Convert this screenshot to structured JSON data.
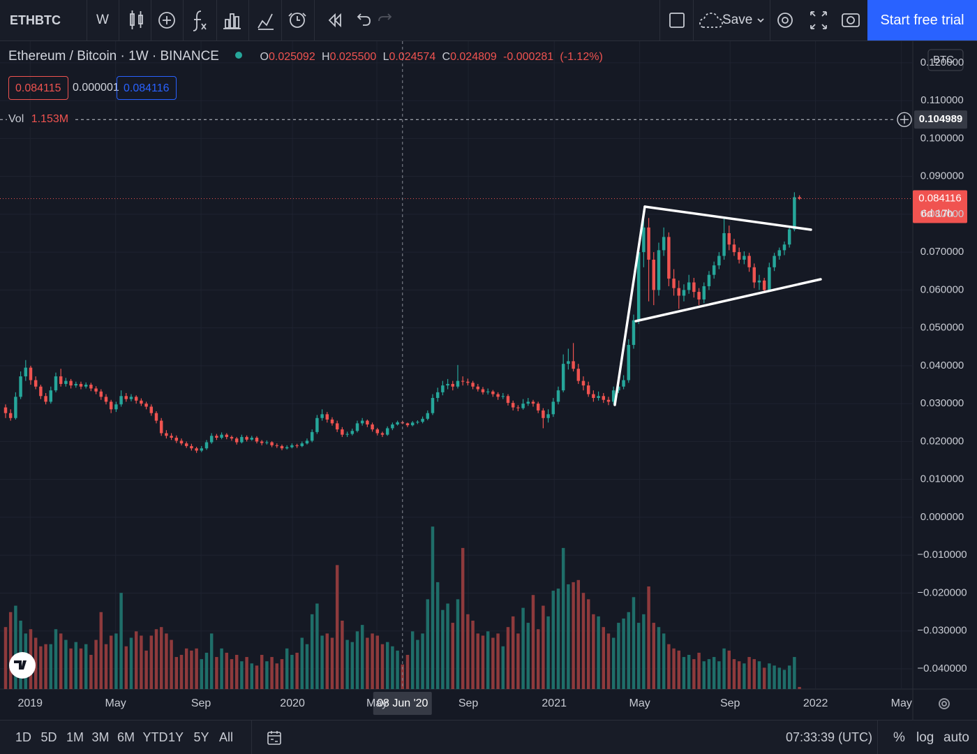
{
  "toolbar": {
    "symbol": "ETHBTC",
    "interval": "W",
    "save": "Save",
    "trial": "Start free trial"
  },
  "legend": {
    "title": "Ethereum / Bitcoin · 1W · BINANCE",
    "ohlc": [
      {
        "key": "O",
        "value": 0.025092
      },
      {
        "key": "H",
        "value": 0.0255,
        "label": "0.025500"
      },
      {
        "key": "L",
        "value": 0.024574
      },
      {
        "key": "C",
        "value": 0.024809
      }
    ],
    "change": -0.000281,
    "change_percent": {
      "value": -1.12,
      "label": "(-1.12%)"
    },
    "bid": 0.084115,
    "spread": 1e-06,
    "ask": 0.084116,
    "volume_name": "Vol",
    "volume_value": {
      "value": 1.153,
      "label": "1.153M"
    }
  },
  "chart_data": {
    "type": "candlestick",
    "grid": true,
    "up_color": "#26a69a",
    "down_color": "#ef5350",
    "volume_up_color": "#1f6e69",
    "volume_down_color": "#8e3a3c",
    "currency": "BTC",
    "xlim": [
      -1.11,
      180.56
    ],
    "xticks": [
      {
        "value": 4.9,
        "label": "2019"
      },
      {
        "value": 21.9,
        "label": "May"
      },
      {
        "value": 38.9,
        "label": "Sep"
      },
      {
        "value": 57.1,
        "label": "2020"
      },
      {
        "value": 73.9,
        "label": "May"
      },
      {
        "value": 92.1,
        "label": "Sep"
      },
      {
        "value": 109.2,
        "label": "2021"
      },
      {
        "value": 126.2,
        "label": "May"
      },
      {
        "value": 144.2,
        "label": "Sep"
      },
      {
        "value": 161.2,
        "label": "2022"
      },
      {
        "value": 178.3,
        "label": "May"
      }
    ],
    "ylim": [
      -0.04535,
      0.12568
    ],
    "yticks": [
      {
        "value": 0.12,
        "label": "0.120000"
      },
      {
        "value": 0.11,
        "label": "0.110000"
      },
      {
        "value": 0.1,
        "label": "0.100000"
      },
      {
        "value": 0.09,
        "label": "0.090000"
      },
      {
        "value": 0.08,
        "label": "0.080000"
      },
      {
        "value": 0.07,
        "label": "0.070000"
      },
      {
        "value": 0.06,
        "label": "0.060000"
      },
      {
        "value": 0.05,
        "label": "0.050000"
      },
      {
        "value": 0.04,
        "label": "0.040000"
      },
      {
        "value": 0.03,
        "label": "0.030000"
      },
      {
        "value": 0.02,
        "label": "0.020000"
      },
      {
        "value": 0.01,
        "label": "0.010000"
      },
      {
        "value": 0,
        "label": "0.000000"
      },
      {
        "value": -0.01,
        "label": "−0.010000"
      },
      {
        "value": -0.02,
        "label": "−0.020000"
      },
      {
        "value": -0.03,
        "label": "−0.030000"
      },
      {
        "value": -0.04,
        "label": "−0.040000"
      }
    ],
    "volume_ylim": [
      0,
      8
    ],
    "last_price": {
      "value": 0.084116,
      "countdown": "6d 17h"
    },
    "crosshair": {
      "x": 79,
      "x_label": "08 Jun '20",
      "y": 0.104989
    },
    "candles": [
      [
        0.029,
        0.0298,
        0.0262,
        0.0275
      ],
      [
        0.0275,
        0.0285,
        0.0255,
        0.0262
      ],
      [
        0.0262,
        0.033,
        0.0258,
        0.0318
      ],
      [
        0.0318,
        0.0385,
        0.0312,
        0.0372
      ],
      [
        0.0372,
        0.0415,
        0.036,
        0.0395
      ],
      [
        0.0395,
        0.04,
        0.035,
        0.0362
      ],
      [
        0.0362,
        0.0372,
        0.0338,
        0.0345
      ],
      [
        0.0345,
        0.035,
        0.0312,
        0.032
      ],
      [
        0.032,
        0.0328,
        0.0298,
        0.0305
      ],
      [
        0.0305,
        0.0345,
        0.03,
        0.0335
      ],
      [
        0.0335,
        0.0382,
        0.033,
        0.0372
      ],
      [
        0.0372,
        0.0392,
        0.0345,
        0.0352
      ],
      [
        0.0352,
        0.0368,
        0.0345,
        0.036
      ],
      [
        0.036,
        0.0365,
        0.034,
        0.0348
      ],
      [
        0.0348,
        0.0358,
        0.0342,
        0.0352
      ],
      [
        0.0352,
        0.0358,
        0.0338,
        0.0345
      ],
      [
        0.0345,
        0.0356,
        0.034,
        0.035
      ],
      [
        0.035,
        0.0355,
        0.0333,
        0.034
      ],
      [
        0.034,
        0.0346,
        0.0325,
        0.0332
      ],
      [
        0.0332,
        0.0338,
        0.031,
        0.0318
      ],
      [
        0.0318,
        0.0325,
        0.0298,
        0.0305
      ],
      [
        0.0305,
        0.031,
        0.0275,
        0.0285
      ],
      [
        0.0285,
        0.0305,
        0.0278,
        0.0298
      ],
      [
        0.0298,
        0.0335,
        0.0292,
        0.032
      ],
      [
        0.032,
        0.0328,
        0.0305,
        0.0312
      ],
      [
        0.0312,
        0.0325,
        0.0306,
        0.0318
      ],
      [
        0.0318,
        0.0322,
        0.03,
        0.0308
      ],
      [
        0.0308,
        0.0314,
        0.0294,
        0.03
      ],
      [
        0.03,
        0.0305,
        0.0285,
        0.0292
      ],
      [
        0.0292,
        0.0298,
        0.0268,
        0.0275
      ],
      [
        0.0275,
        0.028,
        0.0248,
        0.0255
      ],
      [
        0.0255,
        0.0262,
        0.0215,
        0.0222
      ],
      [
        0.0222,
        0.023,
        0.0208,
        0.0215
      ],
      [
        0.0215,
        0.0222,
        0.0204,
        0.021
      ],
      [
        0.021,
        0.0216,
        0.0196,
        0.0202
      ],
      [
        0.0202,
        0.0208,
        0.019,
        0.0195
      ],
      [
        0.0195,
        0.02,
        0.0183,
        0.0188
      ],
      [
        0.0188,
        0.0194,
        0.0176,
        0.0182
      ],
      [
        0.0182,
        0.0186,
        0.017,
        0.0176
      ],
      [
        0.0176,
        0.0188,
        0.0172,
        0.0182
      ],
      [
        0.0182,
        0.0204,
        0.0178,
        0.0198
      ],
      [
        0.0198,
        0.0222,
        0.0194,
        0.0215
      ],
      [
        0.0215,
        0.022,
        0.0204,
        0.021
      ],
      [
        0.021,
        0.0224,
        0.0206,
        0.0218
      ],
      [
        0.0218,
        0.0222,
        0.0206,
        0.0212
      ],
      [
        0.0212,
        0.0216,
        0.0202,
        0.0208
      ],
      [
        0.0208,
        0.0212,
        0.0192,
        0.0198
      ],
      [
        0.0198,
        0.0218,
        0.0195,
        0.0212
      ],
      [
        0.0212,
        0.0216,
        0.02,
        0.0205
      ],
      [
        0.0205,
        0.0215,
        0.0202,
        0.021
      ],
      [
        0.021,
        0.0214,
        0.0195,
        0.02
      ],
      [
        0.02,
        0.0204,
        0.019,
        0.0196
      ],
      [
        0.0196,
        0.0203,
        0.0192,
        0.0198
      ],
      [
        0.0198,
        0.0201,
        0.0185,
        0.019
      ],
      [
        0.019,
        0.0195,
        0.0183,
        0.0188
      ],
      [
        0.0188,
        0.0192,
        0.0177,
        0.0182
      ],
      [
        0.0182,
        0.019,
        0.0179,
        0.0185
      ],
      [
        0.0185,
        0.0195,
        0.0182,
        0.019
      ],
      [
        0.019,
        0.0194,
        0.0183,
        0.0188
      ],
      [
        0.0188,
        0.02,
        0.0185,
        0.0195
      ],
      [
        0.0195,
        0.0208,
        0.0192,
        0.0202
      ],
      [
        0.0202,
        0.0232,
        0.0198,
        0.0225
      ],
      [
        0.0225,
        0.027,
        0.022,
        0.0262
      ],
      [
        0.0262,
        0.0285,
        0.0255,
        0.0272
      ],
      [
        0.0272,
        0.0278,
        0.025,
        0.0258
      ],
      [
        0.0258,
        0.0264,
        0.0242,
        0.0248
      ],
      [
        0.0248,
        0.0255,
        0.0225,
        0.0232
      ],
      [
        0.0232,
        0.0238,
        0.0212,
        0.0218
      ],
      [
        0.0218,
        0.0226,
        0.0212,
        0.022
      ],
      [
        0.022,
        0.0234,
        0.0216,
        0.0228
      ],
      [
        0.0228,
        0.0255,
        0.0224,
        0.0248
      ],
      [
        0.0248,
        0.0262,
        0.0242,
        0.0255
      ],
      [
        0.0255,
        0.0258,
        0.0238,
        0.0245
      ],
      [
        0.0245,
        0.025,
        0.0226,
        0.0232
      ],
      [
        0.0232,
        0.0236,
        0.0216,
        0.0222
      ],
      [
        0.0222,
        0.0226,
        0.0212,
        0.0218
      ],
      [
        0.0218,
        0.024,
        0.0215,
        0.0235
      ],
      [
        0.0235,
        0.025,
        0.023,
        0.0245
      ],
      [
        0.0245,
        0.0255,
        0.0242,
        0.025092
      ],
      [
        0.025092,
        0.0255,
        0.024574,
        0.024809
      ],
      [
        0.024809,
        0.025,
        0.0238,
        0.0243
      ],
      [
        0.0243,
        0.0254,
        0.024,
        0.025
      ],
      [
        0.025,
        0.0256,
        0.0246,
        0.0252
      ],
      [
        0.0252,
        0.0266,
        0.0248,
        0.026
      ],
      [
        0.026,
        0.0282,
        0.0256,
        0.0275
      ],
      [
        0.0275,
        0.0325,
        0.027,
        0.0315
      ],
      [
        0.0315,
        0.0342,
        0.0305,
        0.033
      ],
      [
        0.033,
        0.036,
        0.0322,
        0.0348
      ],
      [
        0.0348,
        0.0365,
        0.0338,
        0.0352
      ],
      [
        0.0352,
        0.036,
        0.0335,
        0.0345
      ],
      [
        0.0345,
        0.0402,
        0.034,
        0.036
      ],
      [
        0.036,
        0.0372,
        0.0348,
        0.0358
      ],
      [
        0.0358,
        0.0366,
        0.0348,
        0.0355
      ],
      [
        0.0355,
        0.036,
        0.0338,
        0.0345
      ],
      [
        0.0345,
        0.0352,
        0.0332,
        0.0338
      ],
      [
        0.0338,
        0.0344,
        0.0324,
        0.033
      ],
      [
        0.033,
        0.034,
        0.0324,
        0.0332
      ],
      [
        0.0332,
        0.0336,
        0.0318,
        0.0325
      ],
      [
        0.0325,
        0.033,
        0.031,
        0.0318
      ],
      [
        0.0318,
        0.0328,
        0.0312,
        0.032
      ],
      [
        0.032,
        0.0325,
        0.0295,
        0.0302
      ],
      [
        0.0302,
        0.0308,
        0.0282,
        0.029
      ],
      [
        0.029,
        0.0296,
        0.028,
        0.0288
      ],
      [
        0.0288,
        0.0312,
        0.0284,
        0.03
      ],
      [
        0.03,
        0.0315,
        0.0294,
        0.0305
      ],
      [
        0.0305,
        0.031,
        0.0292,
        0.03
      ],
      [
        0.03,
        0.0305,
        0.0275,
        0.0282
      ],
      [
        0.0282,
        0.0288,
        0.0235,
        0.0262
      ],
      [
        0.0262,
        0.0285,
        0.025,
        0.0272
      ],
      [
        0.0272,
        0.0315,
        0.0265,
        0.0305
      ],
      [
        0.0305,
        0.0345,
        0.0298,
        0.0335
      ],
      [
        0.0335,
        0.043,
        0.033,
        0.0405
      ],
      [
        0.0405,
        0.0445,
        0.039,
        0.0412
      ],
      [
        0.0412,
        0.046,
        0.0385,
        0.0392
      ],
      [
        0.0392,
        0.0405,
        0.0352,
        0.036
      ],
      [
        0.036,
        0.0372,
        0.0335,
        0.0348
      ],
      [
        0.0348,
        0.0358,
        0.0318,
        0.0325
      ],
      [
        0.0325,
        0.0335,
        0.0305,
        0.0315
      ],
      [
        0.0315,
        0.0332,
        0.0308,
        0.032
      ],
      [
        0.032,
        0.0328,
        0.0302,
        0.031
      ],
      [
        0.031,
        0.0318,
        0.0296,
        0.0305
      ],
      [
        0.0305,
        0.0345,
        0.0298,
        0.0335
      ],
      [
        0.0335,
        0.0358,
        0.0328,
        0.0345
      ],
      [
        0.0345,
        0.0375,
        0.0338,
        0.0362
      ],
      [
        0.0362,
        0.047,
        0.0355,
        0.0455
      ],
      [
        0.0455,
        0.0535,
        0.0445,
        0.052
      ],
      [
        0.052,
        0.072,
        0.051,
        0.07
      ],
      [
        0.07,
        0.0805,
        0.066,
        0.0765
      ],
      [
        0.0765,
        0.079,
        0.057,
        0.068
      ],
      [
        0.068,
        0.07,
        0.056,
        0.06
      ],
      [
        0.06,
        0.0725,
        0.0585,
        0.0705
      ],
      [
        0.0705,
        0.0765,
        0.069,
        0.074
      ],
      [
        0.074,
        0.0752,
        0.061,
        0.063
      ],
      [
        0.063,
        0.0655,
        0.0585,
        0.0605
      ],
      [
        0.0605,
        0.0625,
        0.055,
        0.0585
      ],
      [
        0.0585,
        0.0615,
        0.057,
        0.06
      ],
      [
        0.06,
        0.064,
        0.059,
        0.062
      ],
      [
        0.062,
        0.0632,
        0.058,
        0.0595
      ],
      [
        0.0595,
        0.0605,
        0.056,
        0.0575
      ],
      [
        0.0575,
        0.062,
        0.0565,
        0.061
      ],
      [
        0.061,
        0.065,
        0.06,
        0.064
      ],
      [
        0.064,
        0.0675,
        0.063,
        0.0665
      ],
      [
        0.0665,
        0.07,
        0.0655,
        0.069
      ],
      [
        0.069,
        0.0792,
        0.068,
        0.075
      ],
      [
        0.075,
        0.077,
        0.0705,
        0.072
      ],
      [
        0.072,
        0.0735,
        0.069,
        0.07
      ],
      [
        0.07,
        0.0712,
        0.067,
        0.068
      ],
      [
        0.068,
        0.0702,
        0.0668,
        0.069
      ],
      [
        0.069,
        0.0698,
        0.0648,
        0.066
      ],
      [
        0.066,
        0.067,
        0.0605,
        0.062
      ],
      [
        0.062,
        0.064,
        0.06,
        0.0625
      ],
      [
        0.0625,
        0.0632,
        0.0592,
        0.06
      ],
      [
        0.06,
        0.0672,
        0.0596,
        0.066
      ],
      [
        0.066,
        0.0698,
        0.065,
        0.069
      ],
      [
        0.069,
        0.0712,
        0.068,
        0.0705
      ],
      [
        0.0705,
        0.0728,
        0.0692,
        0.072
      ],
      [
        0.072,
        0.077,
        0.0712,
        0.076
      ],
      [
        0.076,
        0.0858,
        0.0755,
        0.0845
      ],
      [
        0.0845,
        0.085,
        0.0838,
        0.084116
      ]
    ],
    "volume": [
      2.9,
      3.6,
      3.9,
      3.2,
      2.6,
      2.8,
      2.4,
      2.0,
      2.1,
      2.1,
      2.8,
      2.6,
      2.3,
      1.9,
      2.2,
      1.9,
      2.1,
      1.6,
      2.3,
      3.6,
      2.1,
      2.5,
      2.6,
      4.5,
      2.0,
      2.4,
      2.7,
      2.5,
      1.8,
      2.5,
      2.8,
      2.9,
      2.6,
      2.3,
      1.5,
      1.6,
      1.9,
      1.8,
      1.9,
      1.4,
      1.7,
      2.6,
      1.5,
      1.9,
      1.7,
      1.4,
      1.6,
      1.3,
      1.5,
      1.2,
      1.1,
      1.6,
      1.3,
      1.5,
      1.2,
      1.4,
      1.9,
      1.6,
      1.7,
      2.4,
      2.1,
      3.5,
      4.0,
      2.5,
      2.6,
      2.4,
      5.8,
      3.2,
      2.3,
      2.2,
      2.7,
      3.0,
      2.4,
      2.6,
      2.5,
      2.1,
      2.2,
      2.0,
      1.8,
      1.153,
      1.6,
      2.7,
      2.3,
      2.6,
      4.2,
      7.6,
      5.0,
      3.7,
      4.0,
      3.1,
      4.2,
      6.6,
      3.5,
      3.2,
      2.6,
      2.5,
      2.7,
      2.4,
      2.6,
      2.0,
      2.9,
      3.4,
      2.6,
      3.8,
      3.1,
      4.4,
      2.8,
      3.9,
      3.4,
      4.6,
      4.7,
      6.6,
      4.9,
      5.0,
      5.1,
      4.5,
      4.2,
      3.5,
      3.4,
      2.9,
      2.6,
      2.4,
      3.1,
      3.3,
      3.6,
      4.3,
      3.1,
      3.5,
      4.8,
      3.1,
      2.9,
      2.6,
      2.1,
      1.9,
      1.8,
      1.5,
      1.6,
      1.4,
      1.7,
      1.3,
      1.4,
      1.5,
      1.3,
      1.9,
      1.8,
      1.4,
      1.3,
      1.2,
      1.5,
      1.4,
      1.3,
      1.0,
      1.2,
      1.1,
      1.0,
      0.9,
      1.1,
      1.5,
      0.1
    ]
  },
  "bottom_bar": {
    "ranges": [
      "1D",
      "5D",
      "1M",
      "3M",
      "6M",
      "YTD",
      "1Y",
      "5Y",
      "All"
    ],
    "time": "07:33:39 (UTC)",
    "options": [
      "%",
      "log",
      "auto"
    ]
  }
}
